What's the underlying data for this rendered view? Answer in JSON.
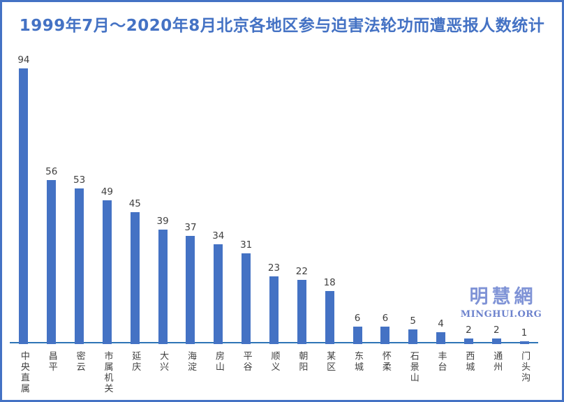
{
  "title": "1999年7月～2020年8月北京各地区参与迫害法轮功而遭恶报人数统计",
  "watermark": {
    "cn": "明慧網",
    "en": "MINGHUI.ORG"
  },
  "colors": {
    "border": "#4472C4",
    "title": "#4472C4",
    "bar": "#4472C4",
    "axis": "#2E75B6",
    "text": "#404040",
    "watermark_cn": "#7F93D6",
    "watermark_en": "#6D83CD"
  },
  "chart_data": {
    "type": "bar",
    "title": "1999年7月～2020年8月北京各地区参与迫害法轮功而遭恶报人数统计",
    "categories": [
      "中央直属",
      "昌平",
      "密云",
      "市属机关",
      "延庆",
      "大兴",
      "海淀",
      "房山",
      "平谷",
      "顺义",
      "朝阳",
      "某区",
      "东城",
      "怀柔",
      "石景山",
      "丰台",
      "西城",
      "通州",
      "门头沟"
    ],
    "values": [
      94,
      56,
      53,
      49,
      45,
      39,
      37,
      34,
      31,
      23,
      22,
      18,
      6,
      6,
      5,
      4,
      2,
      2,
      1
    ],
    "xlabel": "",
    "ylabel": "",
    "ylim": [
      0,
      100
    ],
    "data_labels": true,
    "gridlines": false,
    "legend": "none",
    "orientation": "vertical",
    "category_label_style": "vertical-upright"
  }
}
